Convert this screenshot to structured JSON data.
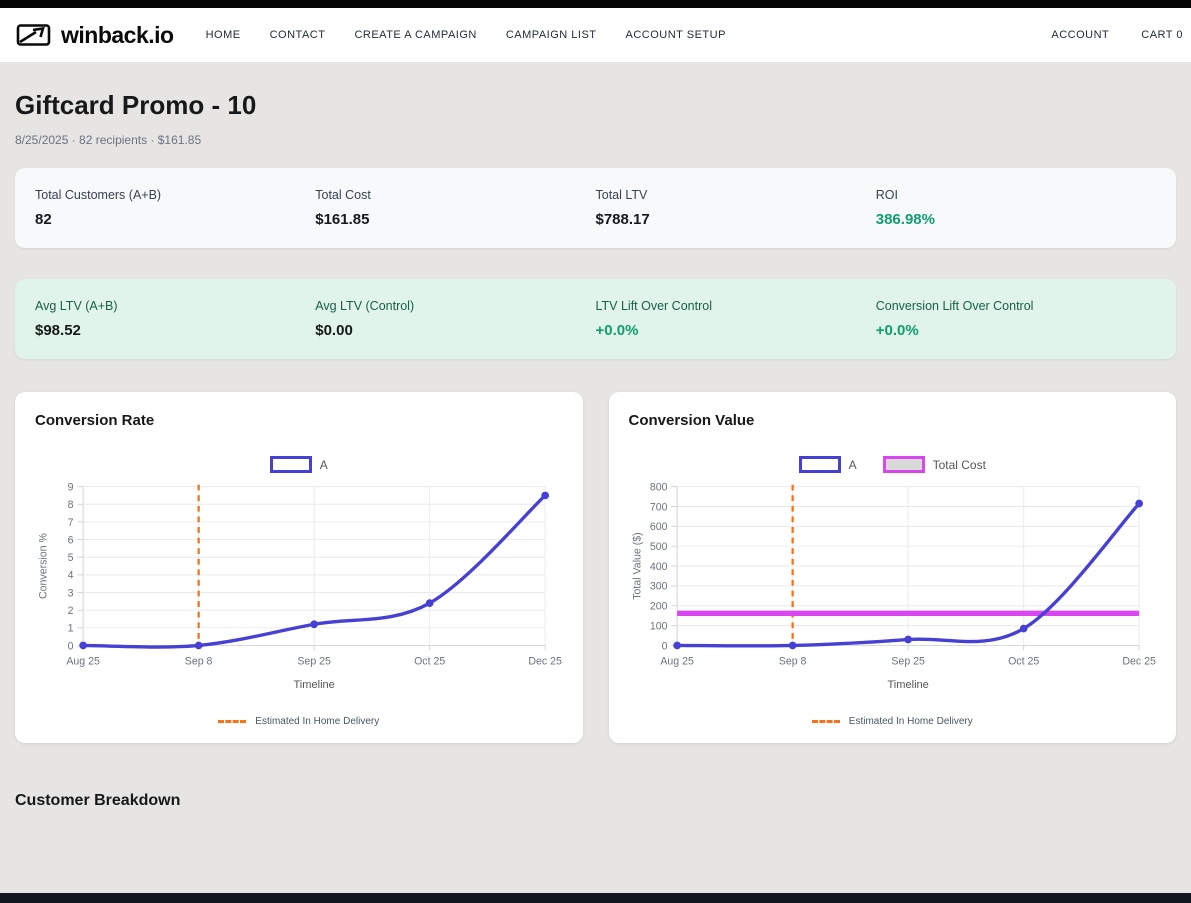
{
  "colors": {
    "accent_indigo": "#4640d4",
    "accent_orange": "#f97316",
    "accent_magenta": "#d946ef",
    "positive_green": "#0d9f6e",
    "mint_bg": "#e1f4ea"
  },
  "nav": {
    "brand": "winback.io",
    "links": [
      "HOME",
      "CONTACT",
      "CREATE A CAMPAIGN",
      "CAMPAIGN LIST",
      "ACCOUNT SETUP"
    ],
    "right_links": [
      "ACCOUNT",
      "CART 0"
    ]
  },
  "header": {
    "title": "Giftcard Promo - 10",
    "subtitle": "8/25/2025 · 82 recipients · $161.85"
  },
  "summary": {
    "row1": [
      {
        "label": "Total Customers (A+B)",
        "value": "82",
        "tone": "dark"
      },
      {
        "label": "Total Cost",
        "value": "$161.85",
        "tone": "dark"
      },
      {
        "label": "Total LTV",
        "value": "$788.17",
        "tone": "dark"
      },
      {
        "label": "ROI",
        "value": "386.98%",
        "tone": "green"
      }
    ],
    "row2": [
      {
        "label": "Avg LTV (A+B)",
        "value": "$98.52",
        "tone": "dark"
      },
      {
        "label": "Avg LTV (Control)",
        "value": "$0.00",
        "tone": "dark"
      },
      {
        "label": "LTV Lift Over Control",
        "value": "+0.0%",
        "tone": "green"
      },
      {
        "label": "Conversion Lift Over Control",
        "value": "+0.0%",
        "tone": "green"
      }
    ]
  },
  "sections": {
    "customer_breakdown": "Customer Breakdown"
  },
  "chart_data": [
    {
      "type": "line",
      "title": "Conversion Rate",
      "categories": [
        "Aug 25",
        "Sep 8",
        "Sep 25",
        "Oct 25",
        "Dec 25"
      ],
      "series": [
        {
          "name": "A",
          "color": "#4640d4",
          "values": [
            0,
            0,
            1.2,
            2.4,
            8.5
          ]
        }
      ],
      "xlabel": "Timeline",
      "ylabel": "Conversion %",
      "ylim": [
        0,
        9
      ],
      "ytick_step": 1,
      "grid": true,
      "legend_position": "top",
      "vline": {
        "at_category": "Sep 8",
        "category_index": 1,
        "label": "Estimated In Home Delivery",
        "color": "#f97316",
        "style": "dashed"
      }
    },
    {
      "type": "line",
      "title": "Conversion Value",
      "categories": [
        "Aug 25",
        "Sep 8",
        "Sep 25",
        "Oct 25",
        "Dec 25"
      ],
      "series": [
        {
          "name": "A",
          "color": "#4640d4",
          "values": [
            0,
            0,
            30,
            85,
            715
          ]
        }
      ],
      "hline": {
        "name": "Total Cost",
        "value": 161.85,
        "color": "#d946ef",
        "fill": "#d9d9d9"
      },
      "xlabel": "Timeline",
      "ylabel": "Total Value ($)",
      "ylim": [
        0,
        800
      ],
      "ytick_step": 100,
      "grid": true,
      "legend_position": "top",
      "vline": {
        "at_category": "Sep 8",
        "category_index": 1,
        "label": "Estimated In Home Delivery",
        "color": "#f97316",
        "style": "dashed"
      }
    }
  ]
}
